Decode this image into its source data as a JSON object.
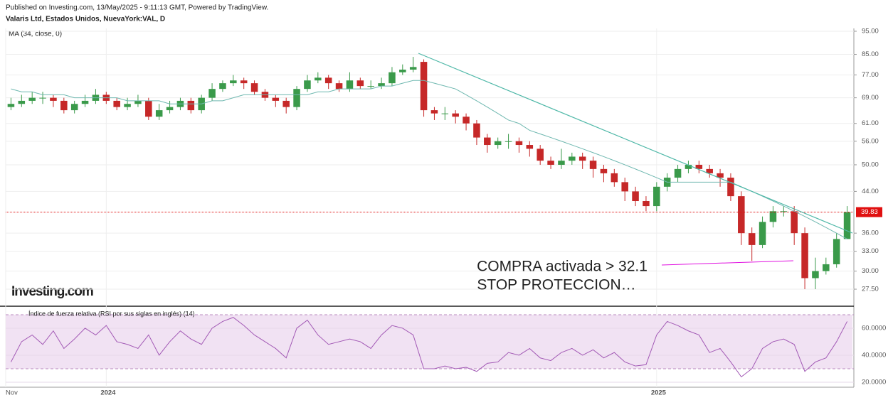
{
  "header": {
    "published": "Published on Investing.com, 13/May/2025 - 9:11:13 GMT, Powered by TradingView.",
    "symbol": "Valaris Ltd, Estados Unidos, NuevaYork:VAL, D",
    "logo": "Investing.com"
  },
  "chart_data": [
    {
      "type": "candlestick",
      "indicator": "MA (34, close, 0)",
      "up_color": "#3a9a4a",
      "down_color": "#c62828",
      "log": true,
      "ylim": [
        25.6,
        96.3
      ],
      "yticks": [
        {
          "value": 27.5,
          "label": "27.50"
        },
        {
          "value": 30,
          "label": "30.00"
        },
        {
          "value": 33,
          "label": "33.00"
        },
        {
          "value": 36,
          "label": "36.00"
        },
        {
          "value": 44,
          "label": "44.00"
        },
        {
          "value": 50,
          "label": "50.00"
        },
        {
          "value": 56,
          "label": "56.00"
        },
        {
          "value": 61,
          "label": "61.00"
        },
        {
          "value": 69,
          "label": "69.00"
        },
        {
          "value": 77,
          "label": "77.00"
        },
        {
          "value": 85,
          "label": "85.00"
        },
        {
          "value": 95,
          "label": "95.00"
        }
      ],
      "last_price": 39.83,
      "last_price_color": "#e01010",
      "annotations": [
        "COMPRA activada > 32.1",
        "STOP PROTECCION…"
      ],
      "annotation_color": "#e010e0",
      "open": [
        66,
        67,
        68,
        69,
        69,
        68,
        65,
        67,
        68,
        70,
        68,
        66,
        67,
        68,
        63,
        65,
        66,
        68,
        65,
        69,
        72,
        74,
        75,
        74,
        71,
        69,
        68,
        66,
        72,
        75,
        76,
        74,
        72,
        75,
        73,
        73,
        74,
        78,
        79,
        82,
        65,
        64,
        64,
        63,
        61,
        57,
        55,
        56,
        56,
        55,
        54,
        51,
        50,
        51,
        52,
        51,
        49,
        48,
        46,
        44,
        42,
        41,
        45,
        47,
        49,
        50,
        49,
        48,
        47,
        43,
        36,
        34,
        38,
        40,
        40,
        36,
        29,
        30,
        31,
        35
      ],
      "high": [
        69,
        70,
        71,
        71,
        70,
        69,
        68,
        70,
        72,
        71,
        69,
        69,
        70,
        69,
        67,
        68,
        69,
        69,
        70,
        74,
        75,
        77,
        76,
        75,
        72,
        70,
        69,
        73,
        77,
        78,
        77,
        75,
        78,
        76,
        75,
        76,
        80,
        81,
        84,
        83,
        66,
        66,
        65,
        64,
        62,
        58,
        57,
        58,
        57,
        56,
        55,
        52,
        54,
        53,
        53,
        52,
        50,
        49,
        47,
        45,
        43,
        46,
        48,
        50,
        51,
        51,
        50,
        49,
        48,
        44,
        37,
        39,
        41,
        41,
        41,
        37,
        32,
        32,
        36,
        41
      ],
      "low": [
        65,
        66,
        67,
        67,
        66,
        64,
        64,
        66,
        67,
        67,
        65,
        65,
        66,
        62,
        62,
        64,
        65,
        64,
        64,
        68,
        71,
        73,
        72,
        70,
        68,
        66,
        64,
        65,
        71,
        74,
        72,
        71,
        71,
        72,
        72,
        72,
        73,
        77,
        78,
        63,
        62,
        62,
        61,
        59,
        55,
        53,
        54,
        54,
        53,
        52,
        50,
        49,
        49,
        50,
        49,
        47,
        46,
        45,
        42,
        41,
        40,
        40,
        44,
        46,
        48,
        48,
        47,
        45,
        42,
        34,
        31.5,
        33.5,
        37,
        39,
        34,
        27.5,
        27.5,
        29.5,
        30.5,
        35
      ],
      "close": [
        67,
        68,
        69,
        69,
        68,
        65,
        67,
        68,
        70,
        68,
        66,
        67,
        68,
        63,
        65,
        66,
        68,
        65,
        69,
        72,
        74,
        75,
        74,
        71,
        69,
        68,
        66,
        72,
        75,
        76,
        74,
        72,
        75,
        73,
        73,
        74,
        78,
        79,
        80,
        65,
        64,
        64,
        63,
        61,
        57,
        55,
        56,
        56,
        55,
        54,
        51,
        50,
        51,
        52,
        51,
        49,
        48,
        46,
        44,
        42,
        41,
        45,
        47,
        49,
        50,
        49,
        48,
        47,
        43,
        36,
        34,
        38,
        40,
        40,
        36,
        29,
        30,
        31,
        35,
        39.83
      ],
      "ma": {
        "color": "#6fb8b0",
        "values": [
          72,
          71,
          71,
          70,
          70,
          70,
          69,
          69,
          69,
          69,
          69,
          68,
          68,
          68,
          68,
          67,
          67,
          67,
          67,
          68,
          68,
          69,
          70,
          70,
          70,
          70,
          70,
          70,
          70,
          71,
          71,
          72,
          72,
          72,
          72,
          73,
          73,
          74,
          75,
          75,
          74,
          73,
          72,
          70,
          68,
          66,
          64,
          62,
          61,
          59,
          58,
          57,
          56,
          55,
          54,
          53,
          52,
          51,
          50,
          49,
          48,
          47,
          46,
          46,
          46,
          46,
          46,
          46,
          46,
          45,
          44,
          43,
          42,
          41,
          40,
          39,
          38,
          37,
          36,
          35
        ]
      }
    },
    {
      "type": "line",
      "title": "Índice de fuerza relativa (RSI por sus siglas en inglés) (14)",
      "categories": [
        "Nov",
        null,
        null,
        null,
        null,
        null,
        null,
        null,
        null,
        "2024",
        null,
        null,
        null,
        null,
        null,
        null,
        null,
        null,
        null,
        null,
        null,
        null,
        null,
        null,
        null,
        null,
        null,
        null,
        null,
        null,
        null,
        null,
        null,
        null,
        null,
        null,
        null,
        null,
        null,
        null,
        null,
        null,
        null,
        null,
        null,
        null,
        null,
        null,
        null,
        null,
        null,
        null,
        null,
        null,
        null,
        null,
        null,
        null,
        null,
        null,
        null,
        "2025",
        null,
        null,
        null,
        null,
        null,
        null,
        null,
        null,
        null,
        null,
        null,
        null,
        null,
        null,
        null,
        null,
        null,
        null
      ],
      "ylim": [
        16.3,
        72.6
      ],
      "yticks": [
        {
          "value": 20,
          "label": "20.0000"
        },
        {
          "value": 40,
          "label": "40.0000"
        },
        {
          "value": 60,
          "label": "60.0000"
        }
      ],
      "bands": [
        30,
        70
      ],
      "band_color": "#f1e2f3",
      "series": [
        {
          "color": "#a259b5",
          "values": [
            35,
            50,
            55,
            48,
            58,
            45,
            52,
            60,
            55,
            62,
            50,
            48,
            45,
            55,
            40,
            50,
            58,
            52,
            48,
            60,
            65,
            68,
            62,
            55,
            50,
            45,
            38,
            60,
            66,
            55,
            48,
            50,
            52,
            50,
            45,
            55,
            62,
            60,
            55,
            30,
            30,
            32,
            30,
            31,
            28,
            34,
            35,
            42,
            40,
            45,
            38,
            36,
            42,
            45,
            40,
            44,
            38,
            42,
            35,
            32,
            33,
            55,
            65,
            62,
            58,
            55,
            42,
            45,
            35,
            24,
            30,
            45,
            50,
            52,
            48,
            28,
            35,
            38,
            50,
            65
          ]
        }
      ]
    }
  ]
}
